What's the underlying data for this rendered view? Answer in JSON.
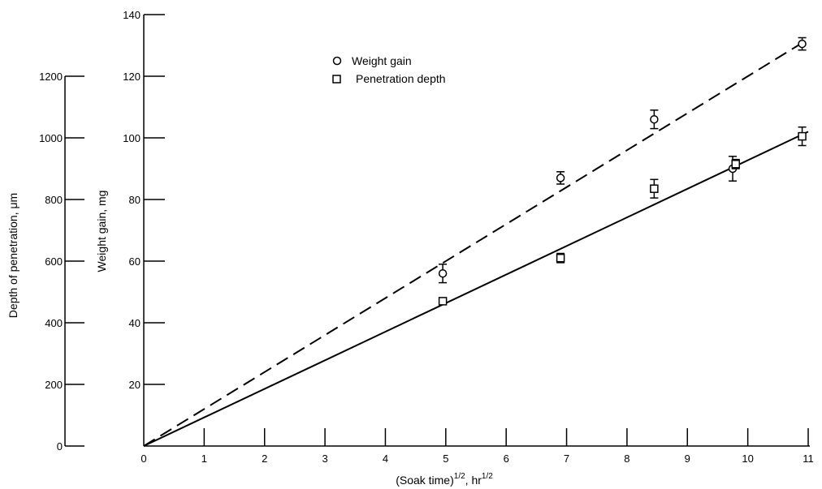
{
  "chart_data": {
    "type": "scatter",
    "title": "",
    "xlabel": {
      "main": "(Soak time)",
      "exp": "1/2",
      "sep": ", hr",
      "exp2": "1/2"
    },
    "ylabel": "Weight gain, mg",
    "ylabel_secondary": "Depth of penetration, μm",
    "xlim": [
      0,
      11
    ],
    "ylim": [
      0,
      140
    ],
    "ylim_secondary": [
      0,
      1200
    ],
    "x_ticks": [
      "0",
      "1",
      "2",
      "3",
      "4",
      "5",
      "6",
      "7",
      "8",
      "9",
      "10",
      "11"
    ],
    "y_ticks": [
      "0",
      "20",
      "40",
      "60",
      "80",
      "100",
      "120",
      "140"
    ],
    "y_ticks_secondary": [
      "0",
      "200",
      "400",
      "600",
      "800",
      "1000",
      "1200"
    ],
    "legend_position": "top-center",
    "grid": false,
    "series": [
      {
        "name": "Weight gain",
        "marker": "circle",
        "axis": "left",
        "points": [
          {
            "x": 4.95,
            "y": 56,
            "err": 3
          },
          {
            "x": 6.9,
            "y": 87,
            "err": 2
          },
          {
            "x": 8.45,
            "y": 106,
            "err": 3
          },
          {
            "x": 9.75,
            "y": 90,
            "err": 4
          },
          {
            "x": 10.9,
            "y": 130.5,
            "err": 2
          }
        ],
        "fit": {
          "style": "dashed",
          "from": [
            0,
            0
          ],
          "to": [
            11,
            132
          ]
        }
      },
      {
        "name": "Penetration depth",
        "marker": "square",
        "axis": "right",
        "points": [
          {
            "x": 4.95,
            "y": 470,
            "err": 0
          },
          {
            "x": 6.9,
            "y": 610,
            "err": 15
          },
          {
            "x": 8.45,
            "y": 835,
            "err": 30
          },
          {
            "x": 9.8,
            "y": 915,
            "err": 15
          },
          {
            "x": 10.9,
            "y": 1005,
            "err": 30
          }
        ],
        "fit": {
          "style": "solid",
          "from": [
            0,
            0
          ],
          "to": [
            11,
            1020
          ]
        }
      }
    ]
  }
}
